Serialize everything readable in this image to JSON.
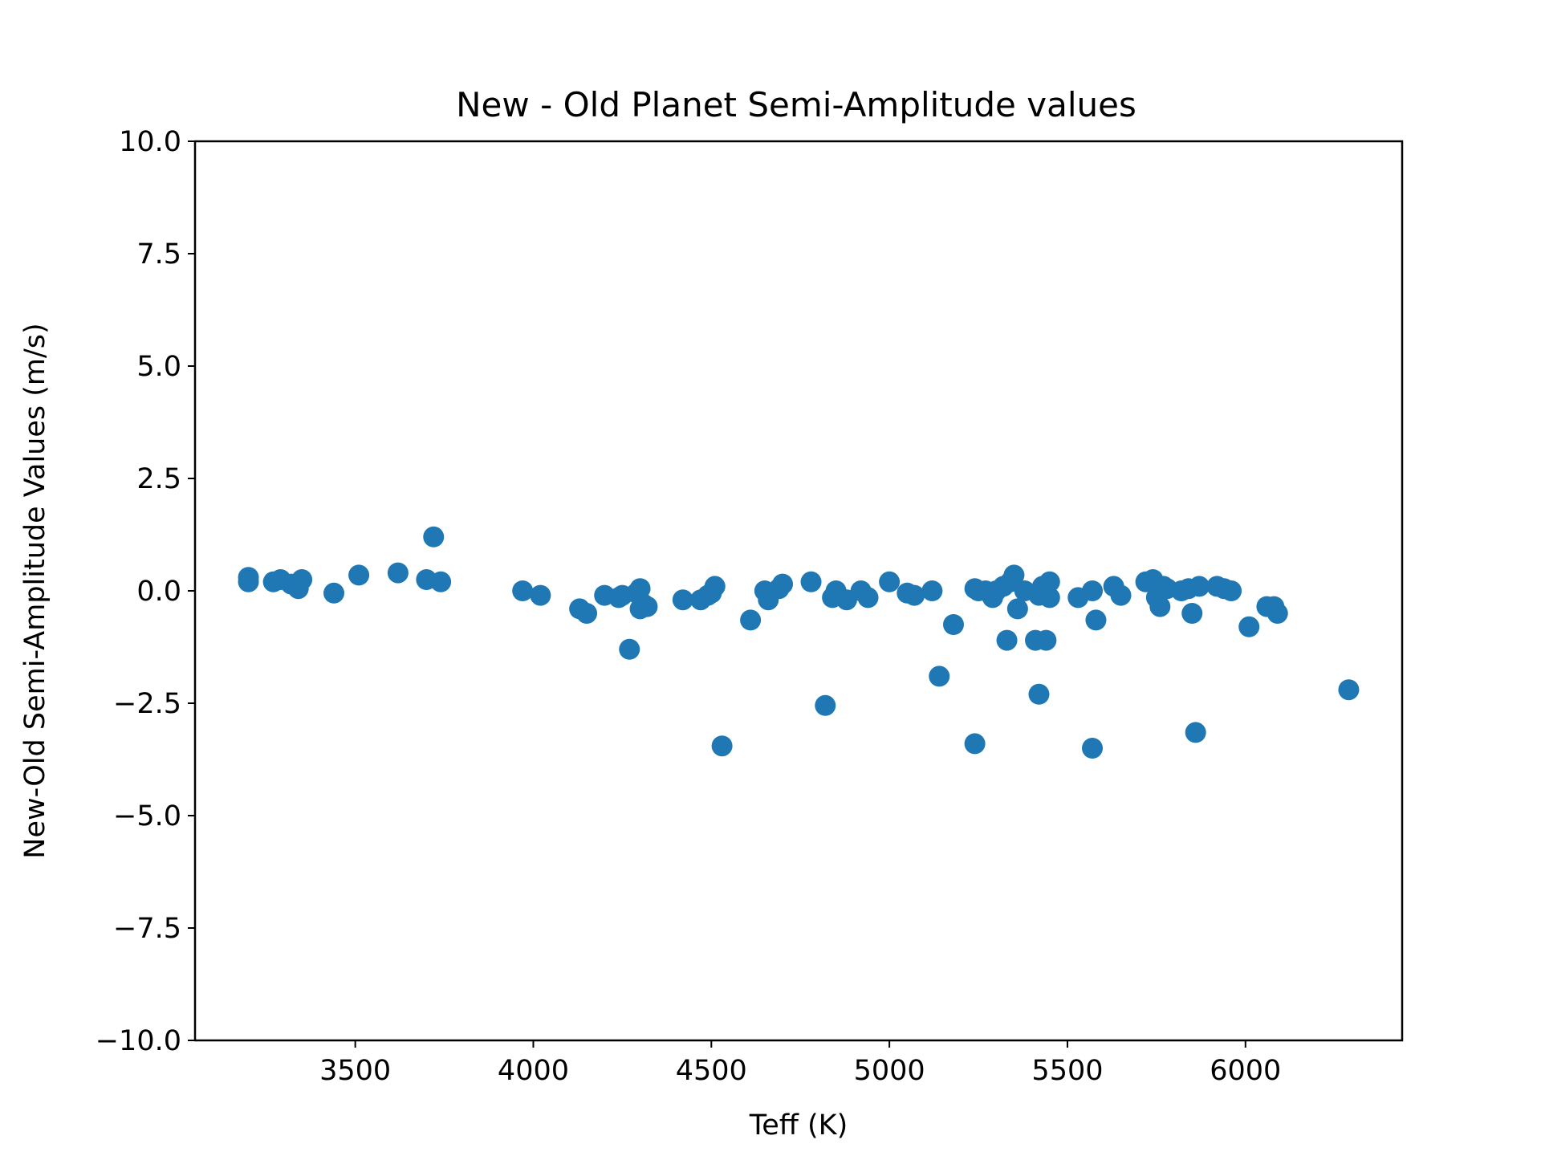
{
  "chart_data": {
    "type": "scatter",
    "title": "New - Old Planet Semi-Amplitude values",
    "xlabel": "Teff (K)",
    "ylabel": "New-Old Semi-Amplitude Values (m/s)",
    "xlim": [
      3050,
      6440
    ],
    "ylim": [
      -10.0,
      10.0
    ],
    "xticks": [
      3500,
      4000,
      4500,
      5000,
      5500,
      6000
    ],
    "xtick_labels": [
      "3500",
      "4000",
      "4500",
      "5000",
      "5500",
      "6000"
    ],
    "yticks": [
      -10.0,
      -7.5,
      -5.0,
      -2.5,
      0.0,
      2.5,
      5.0,
      7.5,
      10.0
    ],
    "ytick_labels": [
      "−10.0",
      "−7.5",
      "−5.0",
      "−2.5",
      "0.0",
      "2.5",
      "5.0",
      "7.5",
      "10.0"
    ],
    "grid": false,
    "marker_color": "#1f77b4",
    "series": [
      {
        "x": [
          3200,
          3200,
          3270,
          3290,
          3320,
          3340,
          3350,
          3440,
          3510,
          3620,
          3700,
          3720,
          3740,
          3970,
          4020,
          4130,
          4150,
          4200,
          4240,
          4250,
          4270,
          4290,
          4300,
          4300,
          4310,
          4320,
          4420,
          4470,
          4490,
          4500,
          4510,
          4530,
          4610,
          4650,
          4660,
          4690,
          4700,
          4780,
          4820,
          4840,
          4850,
          4880,
          4920,
          4940,
          5000,
          5050,
          5070,
          5120,
          5140,
          5180,
          5240,
          5240,
          5250,
          5270,
          5290,
          5300,
          5320,
          5330,
          5340,
          5350,
          5360,
          5380,
          5410,
          5420,
          5420,
          5430,
          5440,
          5450,
          5450,
          5530,
          5570,
          5570,
          5580,
          5630,
          5650,
          5720,
          5740,
          5750,
          5760,
          5770,
          5780,
          5820,
          5840,
          5850,
          5860,
          5870,
          5920,
          5940,
          5960,
          6010,
          6060,
          6080,
          6090,
          6290
        ],
        "y": [
          0.3,
          0.2,
          0.2,
          0.25,
          0.15,
          0.05,
          0.25,
          -0.05,
          0.35,
          0.4,
          0.25,
          1.2,
          0.2,
          0.0,
          -0.1,
          -0.4,
          -0.5,
          -0.1,
          -0.15,
          -0.1,
          -1.3,
          -0.05,
          0.05,
          -0.4,
          -0.3,
          -0.35,
          -0.2,
          -0.2,
          -0.1,
          -0.05,
          0.1,
          -3.45,
          -0.65,
          0.0,
          -0.2,
          0.05,
          0.15,
          0.2,
          -2.55,
          -0.15,
          0.0,
          -0.2,
          0.0,
          -0.15,
          0.2,
          -0.05,
          -0.1,
          0.0,
          -1.9,
          -0.75,
          -3.4,
          0.05,
          0.0,
          0.0,
          -0.15,
          0.0,
          0.1,
          -1.1,
          0.2,
          0.35,
          -0.4,
          0.0,
          -1.1,
          -2.3,
          -0.1,
          0.1,
          -1.1,
          0.2,
          -0.15,
          -0.15,
          0.0,
          -3.5,
          -0.65,
          0.1,
          -0.1,
          0.2,
          0.25,
          -0.15,
          -0.35,
          0.1,
          0.05,
          0.0,
          0.05,
          -0.5,
          -3.15,
          0.1,
          0.1,
          0.05,
          0.0,
          -0.8,
          -0.35,
          -0.35,
          -0.5,
          -2.2
        ]
      }
    ]
  }
}
